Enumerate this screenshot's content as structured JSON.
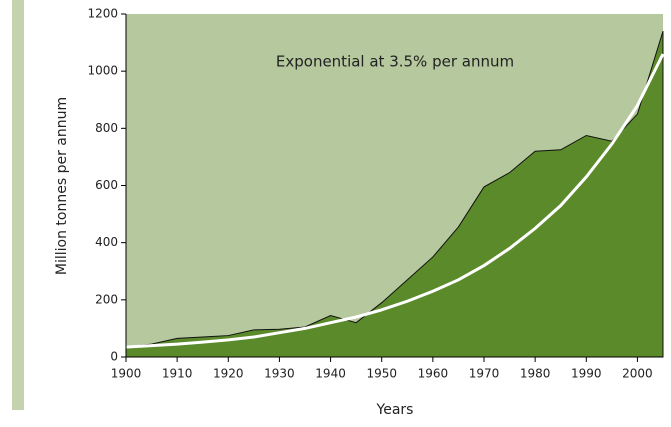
{
  "chart_data": {
    "type": "area",
    "annotation": "Exponential at 3.5% per annum",
    "xlabel": "Years",
    "ylabel": "Million tonnes per annum",
    "x": [
      1900,
      1905,
      1910,
      1915,
      1920,
      1925,
      1930,
      1935,
      1940,
      1945,
      1950,
      1955,
      1960,
      1965,
      1970,
      1975,
      1980,
      1985,
      1990,
      1995,
      2000,
      2005
    ],
    "series": [
      {
        "color": "#5a8a2a",
        "values": [
          35,
          45,
          65,
          70,
          75,
          95,
          97,
          105,
          145,
          120,
          190,
          270,
          350,
          455,
          595,
          645,
          720,
          725,
          775,
          755,
          850,
          1140
        ]
      },
      {
        "type": "line",
        "color": "#ffffff",
        "values": [
          35,
          40,
          45,
          52,
          60,
          70,
          85,
          100,
          120,
          140,
          165,
          195,
          230,
          270,
          320,
          380,
          450,
          530,
          630,
          745,
          880,
          1060
        ]
      }
    ],
    "background": "#b6c89d",
    "xlim": [
      1900,
      2005
    ],
    "xticks": [
      1900,
      1910,
      1920,
      1930,
      1940,
      1950,
      1960,
      1970,
      1980,
      1990,
      2000
    ],
    "ylim": [
      0,
      1200
    ],
    "yticks": [
      0,
      200,
      400,
      600,
      800,
      1000,
      1200
    ]
  }
}
